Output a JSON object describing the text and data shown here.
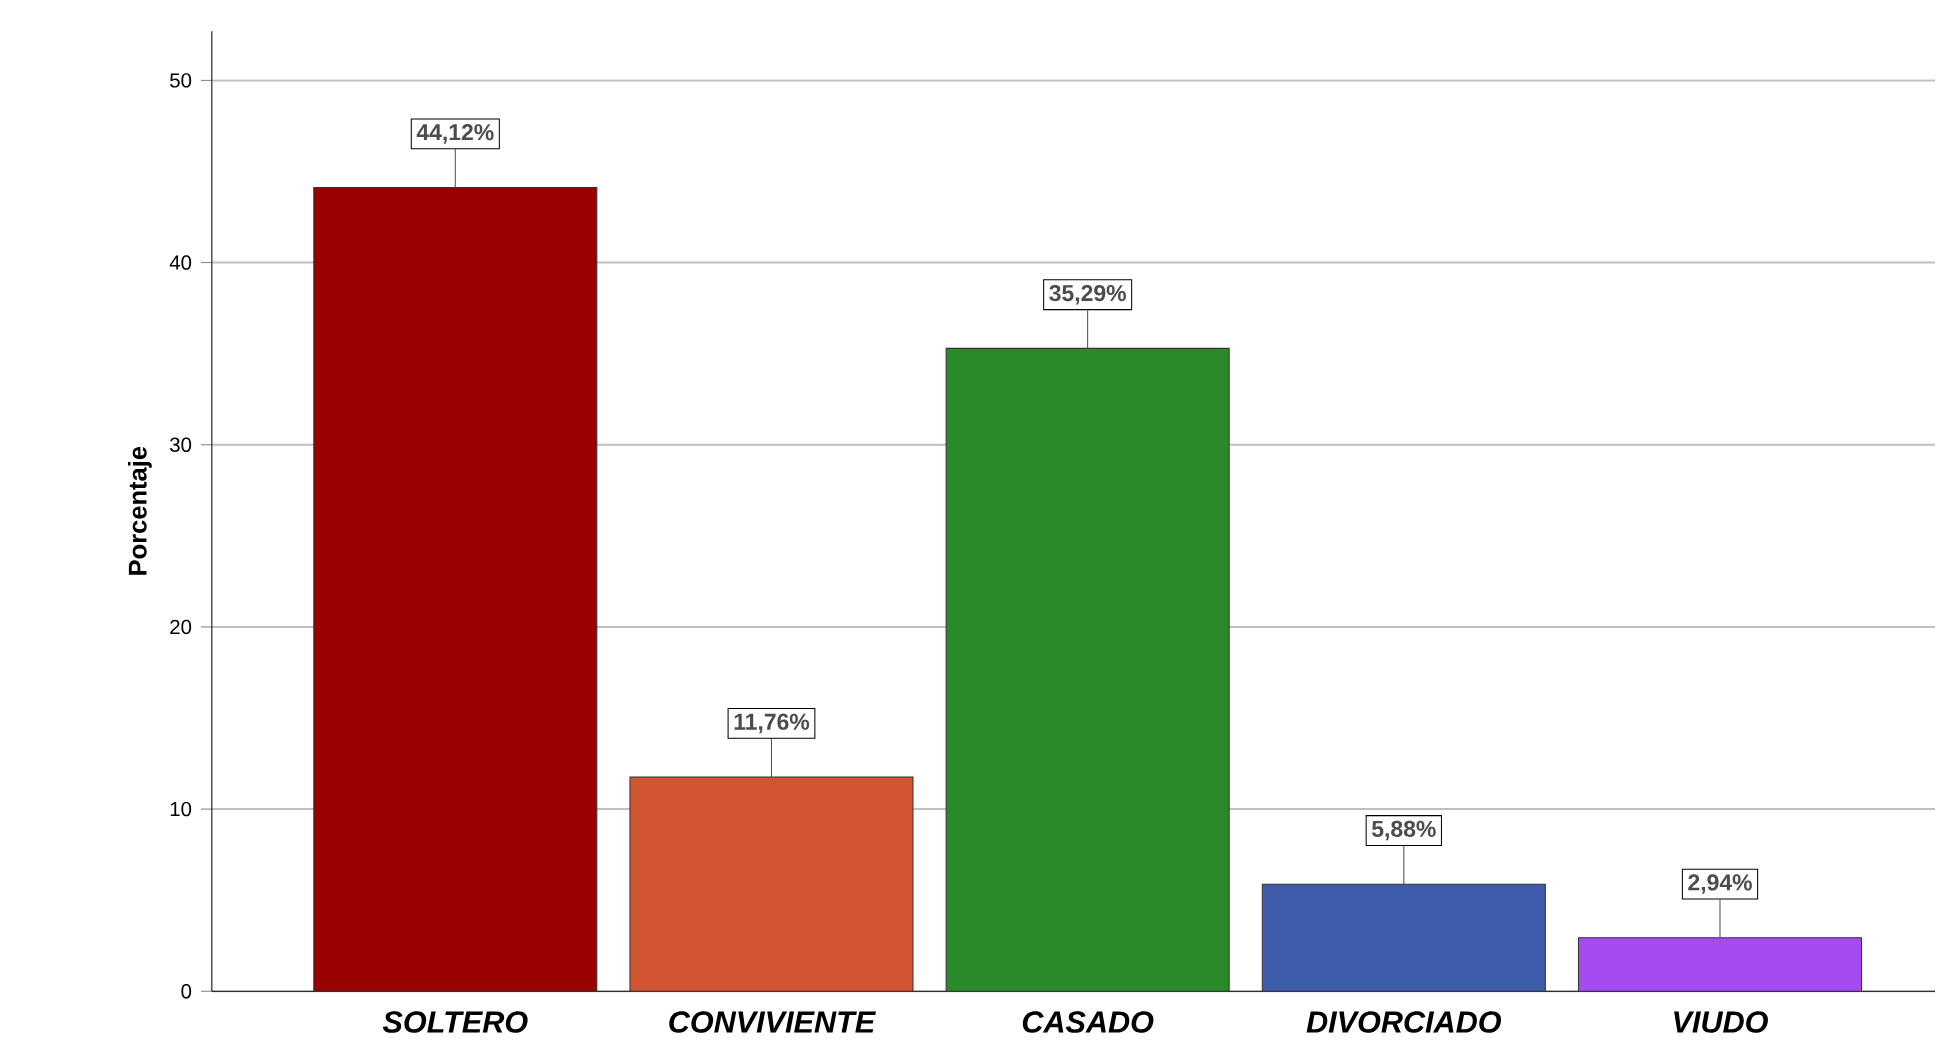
{
  "chart_data": {
    "type": "bar",
    "ylabel": "Porcentaje",
    "categories": [
      "SOLTERO",
      "CONVIVIENTE",
      "CASADO",
      "DIVORCIADO",
      "VIUDO"
    ],
    "values": [
      44.12,
      11.76,
      35.29,
      5.88,
      2.94
    ],
    "colors": [
      "#990000",
      "#d15433",
      "#2a8a2a",
      "#3f5bab",
      "#a64bf2"
    ],
    "value_labels": [
      "44,12%",
      "11,76%",
      "35,29%",
      "5,88%",
      "2,94%"
    ],
    "ylim": [
      0,
      52.7
    ],
    "yticks": [
      0,
      10,
      20,
      30,
      40,
      50
    ],
    "grid": "y"
  }
}
